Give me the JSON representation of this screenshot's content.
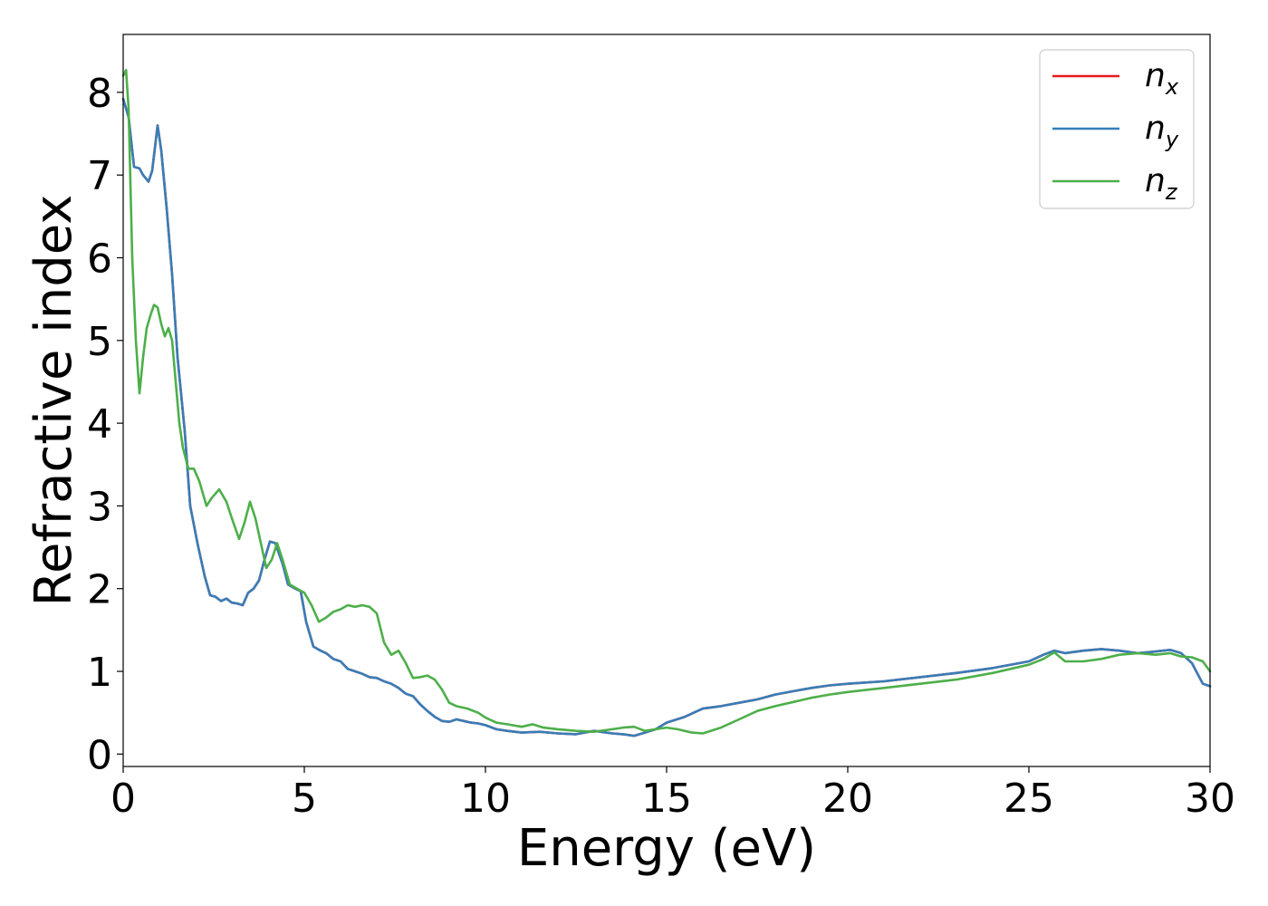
{
  "chart_data": {
    "type": "line",
    "title": "",
    "xlabel": "Energy (eV)",
    "ylabel": "Refractive index",
    "xlim": [
      0,
      30
    ],
    "ylim": [
      -0.15,
      8.7
    ],
    "xticks": [
      0,
      5,
      10,
      15,
      20,
      25,
      30
    ],
    "yticks": [
      0,
      1,
      2,
      3,
      4,
      5,
      6,
      7,
      8
    ],
    "grid": false,
    "legend_position": "top-right",
    "series": [
      {
        "name": "n_x",
        "label_main": "n",
        "label_sub": "x",
        "color": "#e41a1c",
        "x": [
          0,
          0.15,
          0.3,
          0.45,
          0.55,
          0.7,
          0.8,
          0.95,
          1.05,
          1.2,
          1.35,
          1.5,
          1.7,
          1.85,
          2.05,
          2.25,
          2.4,
          2.55,
          2.7,
          2.85,
          3.0,
          3.15,
          3.3,
          3.45,
          3.6,
          3.75,
          3.9,
          4.05,
          4.2,
          4.4,
          4.55,
          4.75,
          4.9,
          5.05,
          5.25,
          5.45,
          5.6,
          5.8,
          6.0,
          6.2,
          6.4,
          6.6,
          6.8,
          7.0,
          7.2,
          7.4,
          7.6,
          7.8,
          8.0,
          8.2,
          8.4,
          8.6,
          8.8,
          9.0,
          9.2,
          9.4,
          9.6,
          9.8,
          10.0,
          10.3,
          10.6,
          11.0,
          11.5,
          12.0,
          12.5,
          13.0,
          13.5,
          13.8,
          14.1,
          14.4,
          14.7,
          15.0,
          15.5,
          16.0,
          16.5,
          17.0,
          17.5,
          18.0,
          18.5,
          19.0,
          19.5,
          20.0,
          21.0,
          22.0,
          23.0,
          24.0,
          25.0,
          25.4,
          25.7,
          26.0,
          26.5,
          27.0,
          27.5,
          28.0,
          28.5,
          28.9,
          29.2,
          29.5,
          29.8,
          30.0
        ],
        "values": [
          7.92,
          7.7,
          7.1,
          7.08,
          7.0,
          6.92,
          7.05,
          7.6,
          7.3,
          6.6,
          5.8,
          4.8,
          3.9,
          3.0,
          2.55,
          2.15,
          1.92,
          1.9,
          1.85,
          1.88,
          1.83,
          1.82,
          1.8,
          1.95,
          2.0,
          2.1,
          2.35,
          2.57,
          2.55,
          2.3,
          2.05,
          2.0,
          1.97,
          1.6,
          1.3,
          1.25,
          1.22,
          1.15,
          1.12,
          1.03,
          1.0,
          0.97,
          0.93,
          0.92,
          0.88,
          0.85,
          0.8,
          0.73,
          0.7,
          0.6,
          0.52,
          0.45,
          0.4,
          0.39,
          0.42,
          0.4,
          0.38,
          0.37,
          0.35,
          0.3,
          0.28,
          0.26,
          0.27,
          0.25,
          0.24,
          0.28,
          0.25,
          0.24,
          0.22,
          0.26,
          0.3,
          0.38,
          0.45,
          0.55,
          0.58,
          0.62,
          0.66,
          0.72,
          0.76,
          0.8,
          0.83,
          0.85,
          0.88,
          0.93,
          0.98,
          1.04,
          1.12,
          1.2,
          1.25,
          1.22,
          1.25,
          1.27,
          1.25,
          1.22,
          1.24,
          1.26,
          1.22,
          1.1,
          0.85,
          0.82
        ]
      },
      {
        "name": "n_y",
        "label_main": "n",
        "label_sub": "y",
        "color": "#377eb8",
        "x": [
          0,
          0.15,
          0.3,
          0.45,
          0.55,
          0.7,
          0.8,
          0.95,
          1.05,
          1.2,
          1.35,
          1.5,
          1.7,
          1.85,
          2.05,
          2.25,
          2.4,
          2.55,
          2.7,
          2.85,
          3.0,
          3.15,
          3.3,
          3.45,
          3.6,
          3.75,
          3.9,
          4.05,
          4.2,
          4.4,
          4.55,
          4.75,
          4.9,
          5.05,
          5.25,
          5.45,
          5.6,
          5.8,
          6.0,
          6.2,
          6.4,
          6.6,
          6.8,
          7.0,
          7.2,
          7.4,
          7.6,
          7.8,
          8.0,
          8.2,
          8.4,
          8.6,
          8.8,
          9.0,
          9.2,
          9.4,
          9.6,
          9.8,
          10.0,
          10.3,
          10.6,
          11.0,
          11.5,
          12.0,
          12.5,
          13.0,
          13.5,
          13.8,
          14.1,
          14.4,
          14.7,
          15.0,
          15.5,
          16.0,
          16.5,
          17.0,
          17.5,
          18.0,
          18.5,
          19.0,
          19.5,
          20.0,
          21.0,
          22.0,
          23.0,
          24.0,
          25.0,
          25.4,
          25.7,
          26.0,
          26.5,
          27.0,
          27.5,
          28.0,
          28.5,
          28.9,
          29.2,
          29.5,
          29.8,
          30.0
        ],
        "values": [
          7.92,
          7.7,
          7.1,
          7.08,
          7.0,
          6.92,
          7.05,
          7.6,
          7.3,
          6.6,
          5.8,
          4.8,
          3.9,
          3.0,
          2.55,
          2.15,
          1.92,
          1.9,
          1.85,
          1.88,
          1.83,
          1.82,
          1.8,
          1.95,
          2.0,
          2.1,
          2.35,
          2.57,
          2.55,
          2.3,
          2.05,
          2.0,
          1.97,
          1.6,
          1.3,
          1.25,
          1.22,
          1.15,
          1.12,
          1.03,
          1.0,
          0.97,
          0.93,
          0.92,
          0.88,
          0.85,
          0.8,
          0.73,
          0.7,
          0.6,
          0.52,
          0.45,
          0.4,
          0.39,
          0.42,
          0.4,
          0.38,
          0.37,
          0.35,
          0.3,
          0.28,
          0.26,
          0.27,
          0.25,
          0.24,
          0.28,
          0.25,
          0.24,
          0.22,
          0.26,
          0.3,
          0.38,
          0.45,
          0.55,
          0.58,
          0.62,
          0.66,
          0.72,
          0.76,
          0.8,
          0.83,
          0.85,
          0.88,
          0.93,
          0.98,
          1.04,
          1.12,
          1.2,
          1.25,
          1.22,
          1.25,
          1.27,
          1.25,
          1.22,
          1.24,
          1.26,
          1.22,
          1.1,
          0.85,
          0.82
        ]
      },
      {
        "name": "n_z",
        "label_main": "n",
        "label_sub": "z",
        "color": "#4daf4a",
        "x": [
          0,
          0.08,
          0.15,
          0.25,
          0.35,
          0.45,
          0.55,
          0.65,
          0.75,
          0.85,
          0.95,
          1.05,
          1.15,
          1.25,
          1.35,
          1.45,
          1.55,
          1.65,
          1.8,
          1.95,
          2.1,
          2.3,
          2.45,
          2.65,
          2.85,
          3.0,
          3.2,
          3.35,
          3.5,
          3.65,
          3.8,
          3.95,
          4.1,
          4.25,
          4.4,
          4.6,
          4.8,
          5.0,
          5.2,
          5.4,
          5.6,
          5.8,
          6.0,
          6.2,
          6.4,
          6.6,
          6.8,
          7.0,
          7.2,
          7.4,
          7.6,
          7.8,
          8.0,
          8.2,
          8.4,
          8.6,
          8.8,
          9.0,
          9.2,
          9.5,
          9.8,
          10.0,
          10.3,
          10.6,
          11.0,
          11.3,
          11.6,
          12.0,
          12.5,
          13.0,
          13.5,
          13.8,
          14.1,
          14.4,
          14.7,
          15.0,
          15.3,
          15.7,
          16.0,
          16.5,
          17.0,
          17.5,
          18.0,
          18.5,
          19.0,
          19.5,
          20.0,
          21.0,
          22.0,
          23.0,
          24.0,
          25.0,
          25.4,
          25.7,
          26.0,
          26.5,
          27.0,
          27.5,
          28.0,
          28.5,
          28.9,
          29.2,
          29.5,
          29.8,
          30.0
        ],
        "values": [
          8.2,
          8.27,
          7.8,
          6.0,
          5.0,
          4.36,
          4.8,
          5.15,
          5.3,
          5.43,
          5.4,
          5.2,
          5.05,
          5.15,
          5.0,
          4.5,
          4.0,
          3.7,
          3.45,
          3.45,
          3.3,
          3.0,
          3.1,
          3.2,
          3.05,
          2.85,
          2.6,
          2.8,
          3.05,
          2.85,
          2.55,
          2.25,
          2.35,
          2.55,
          2.35,
          2.05,
          2.0,
          1.95,
          1.8,
          1.6,
          1.65,
          1.72,
          1.75,
          1.8,
          1.78,
          1.8,
          1.78,
          1.7,
          1.35,
          1.2,
          1.25,
          1.1,
          0.92,
          0.93,
          0.95,
          0.9,
          0.78,
          0.62,
          0.58,
          0.55,
          0.5,
          0.44,
          0.38,
          0.36,
          0.33,
          0.36,
          0.32,
          0.3,
          0.28,
          0.27,
          0.3,
          0.32,
          0.33,
          0.28,
          0.3,
          0.32,
          0.3,
          0.26,
          0.25,
          0.32,
          0.42,
          0.52,
          0.58,
          0.63,
          0.68,
          0.72,
          0.75,
          0.8,
          0.85,
          0.9,
          0.98,
          1.08,
          1.15,
          1.23,
          1.12,
          1.12,
          1.15,
          1.2,
          1.22,
          1.2,
          1.22,
          1.18,
          1.17,
          1.12,
          1.0
        ]
      }
    ]
  }
}
